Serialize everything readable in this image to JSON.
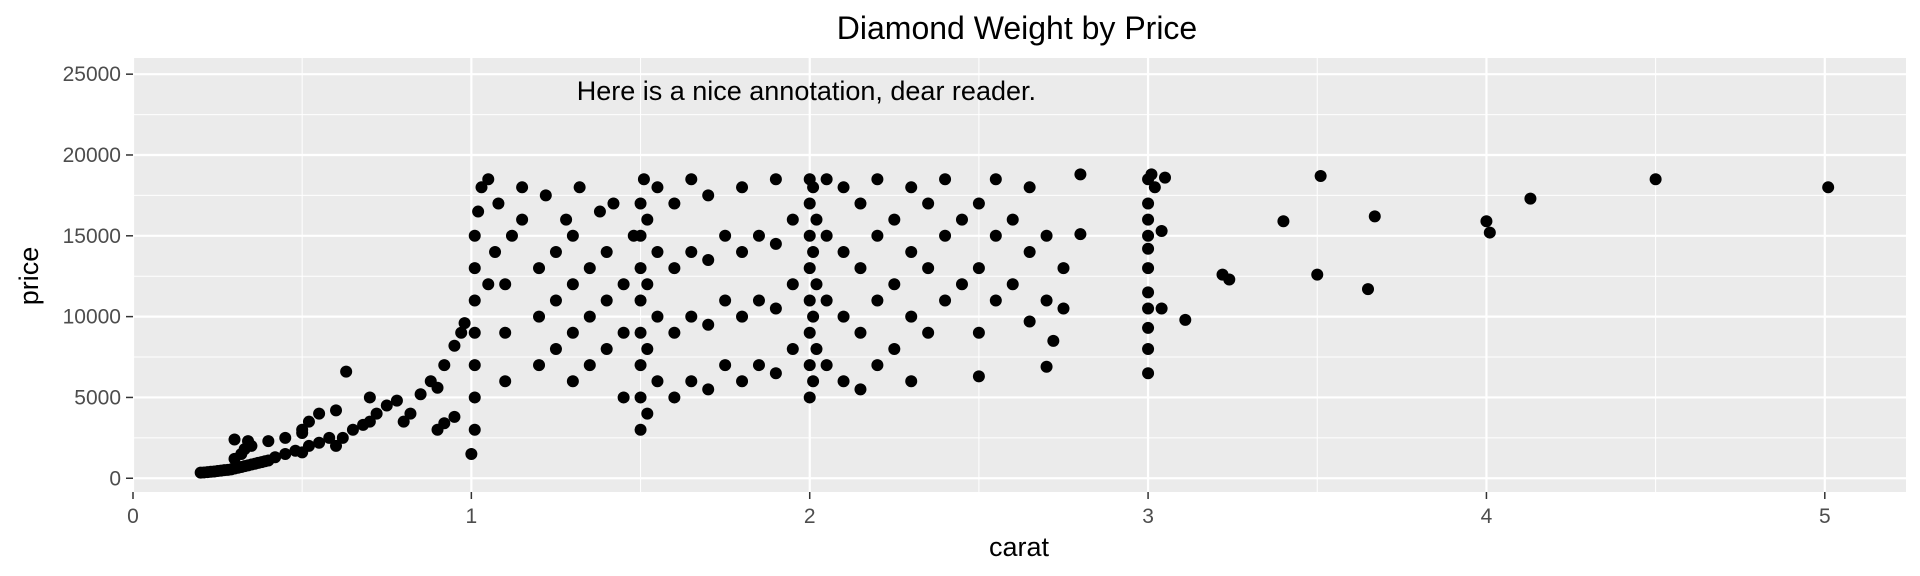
{
  "chart_data": {
    "type": "scatter",
    "title": "Diamond Weight by Price",
    "xlabel": "carat",
    "ylabel": "price",
    "xlim": [
      0,
      5.24
    ],
    "ylim": [
      0,
      25000
    ],
    "x_ticks": [
      0,
      1,
      2,
      3,
      4,
      5
    ],
    "y_ticks": [
      0,
      5000,
      10000,
      15000,
      20000,
      25000
    ],
    "grid": true,
    "annotation": {
      "text": "Here is a nice annotation, dear reader.",
      "x": 2,
      "y": 25000
    },
    "point_color": "#000000",
    "panel_color": "#ebebeb",
    "grid_color": "#ffffff",
    "points": [
      [
        0.2,
        350
      ],
      [
        0.21,
        360
      ],
      [
        0.22,
        380
      ],
      [
        0.23,
        400
      ],
      [
        0.24,
        420
      ],
      [
        0.25,
        450
      ],
      [
        0.26,
        470
      ],
      [
        0.27,
        500
      ],
      [
        0.28,
        520
      ],
      [
        0.29,
        550
      ],
      [
        0.3,
        600
      ],
      [
        0.31,
        650
      ],
      [
        0.32,
        700
      ],
      [
        0.33,
        750
      ],
      [
        0.34,
        800
      ],
      [
        0.35,
        850
      ],
      [
        0.36,
        900
      ],
      [
        0.37,
        950
      ],
      [
        0.38,
        1000
      ],
      [
        0.39,
        1050
      ],
      [
        0.3,
        1200
      ],
      [
        0.32,
        1500
      ],
      [
        0.33,
        1800
      ],
      [
        0.35,
        2000
      ],
      [
        0.3,
        2400
      ],
      [
        0.34,
        2300
      ],
      [
        0.4,
        2300
      ],
      [
        0.45,
        2500
      ],
      [
        0.5,
        2800
      ],
      [
        0.4,
        1100
      ],
      [
        0.42,
        1300
      ],
      [
        0.45,
        1500
      ],
      [
        0.48,
        1700
      ],
      [
        0.5,
        1600
      ],
      [
        0.52,
        2000
      ],
      [
        0.55,
        2200
      ],
      [
        0.58,
        2500
      ],
      [
        0.5,
        3000
      ],
      [
        0.52,
        3500
      ],
      [
        0.55,
        4000
      ],
      [
        0.6,
        2000
      ],
      [
        0.62,
        2500
      ],
      [
        0.65,
        3000
      ],
      [
        0.68,
        3300
      ],
      [
        0.7,
        3500
      ],
      [
        0.72,
        4000
      ],
      [
        0.75,
        4500
      ],
      [
        0.6,
        4200
      ],
      [
        0.63,
        6600
      ],
      [
        0.7,
        5000
      ],
      [
        0.78,
        4800
      ],
      [
        0.8,
        3500
      ],
      [
        0.82,
        4000
      ],
      [
        0.85,
        5200
      ],
      [
        0.88,
        6000
      ],
      [
        0.9,
        5600
      ],
      [
        0.92,
        7000
      ],
      [
        0.95,
        8200
      ],
      [
        0.97,
        9000
      ],
      [
        0.98,
        9600
      ],
      [
        0.9,
        3000
      ],
      [
        0.92,
        3400
      ],
      [
        0.95,
        3800
      ],
      [
        1.0,
        1500
      ],
      [
        1.01,
        3000
      ],
      [
        1.01,
        5000
      ],
      [
        1.01,
        7000
      ],
      [
        1.01,
        9000
      ],
      [
        1.01,
        11000
      ],
      [
        1.01,
        13000
      ],
      [
        1.01,
        15000
      ],
      [
        1.02,
        16500
      ],
      [
        1.03,
        18000
      ],
      [
        1.05,
        12000
      ],
      [
        1.05,
        18500
      ],
      [
        1.07,
        14000
      ],
      [
        1.08,
        17000
      ],
      [
        1.1,
        6000
      ],
      [
        1.1,
        9000
      ],
      [
        1.1,
        12000
      ],
      [
        1.12,
        15000
      ],
      [
        1.15,
        16000
      ],
      [
        1.15,
        18000
      ],
      [
        1.2,
        7000
      ],
      [
        1.2,
        10000
      ],
      [
        1.2,
        13000
      ],
      [
        1.22,
        17500
      ],
      [
        1.25,
        8000
      ],
      [
        1.25,
        11000
      ],
      [
        1.25,
        14000
      ],
      [
        1.28,
        16000
      ],
      [
        1.3,
        6000
      ],
      [
        1.3,
        9000
      ],
      [
        1.3,
        12000
      ],
      [
        1.3,
        15000
      ],
      [
        1.32,
        18000
      ],
      [
        1.35,
        7000
      ],
      [
        1.35,
        10000
      ],
      [
        1.35,
        13000
      ],
      [
        1.38,
        16500
      ],
      [
        1.4,
        8000
      ],
      [
        1.4,
        11000
      ],
      [
        1.4,
        14000
      ],
      [
        1.42,
        17000
      ],
      [
        1.45,
        5000
      ],
      [
        1.45,
        9000
      ],
      [
        1.45,
        12000
      ],
      [
        1.48,
        15000
      ],
      [
        1.5,
        3000
      ],
      [
        1.5,
        5000
      ],
      [
        1.5,
        7000
      ],
      [
        1.5,
        9000
      ],
      [
        1.5,
        11000
      ],
      [
        1.5,
        13000
      ],
      [
        1.5,
        15000
      ],
      [
        1.5,
        17000
      ],
      [
        1.51,
        18500
      ],
      [
        1.52,
        4000
      ],
      [
        1.52,
        8000
      ],
      [
        1.52,
        12000
      ],
      [
        1.52,
        16000
      ],
      [
        1.55,
        6000
      ],
      [
        1.55,
        10000
      ],
      [
        1.55,
        14000
      ],
      [
        1.55,
        18000
      ],
      [
        1.6,
        5000
      ],
      [
        1.6,
        9000
      ],
      [
        1.6,
        13000
      ],
      [
        1.6,
        17000
      ],
      [
        1.65,
        6000
      ],
      [
        1.65,
        10000
      ],
      [
        1.65,
        14000
      ],
      [
        1.65,
        18500
      ],
      [
        1.7,
        5500
      ],
      [
        1.7,
        9500
      ],
      [
        1.7,
        13500
      ],
      [
        1.7,
        17500
      ],
      [
        1.75,
        7000
      ],
      [
        1.75,
        11000
      ],
      [
        1.75,
        15000
      ],
      [
        1.8,
        6000
      ],
      [
        1.8,
        10000
      ],
      [
        1.8,
        14000
      ],
      [
        1.8,
        18000
      ],
      [
        1.85,
        7000
      ],
      [
        1.85,
        11000
      ],
      [
        1.85,
        15000
      ],
      [
        1.9,
        6500
      ],
      [
        1.9,
        10500
      ],
      [
        1.9,
        14500
      ],
      [
        1.95,
        8000
      ],
      [
        1.95,
        12000
      ],
      [
        1.95,
        16000
      ],
      [
        1.9,
        18500
      ],
      [
        2.0,
        5000
      ],
      [
        2.0,
        7000
      ],
      [
        2.0,
        9000
      ],
      [
        2.0,
        11000
      ],
      [
        2.0,
        13000
      ],
      [
        2.0,
        15000
      ],
      [
        2.0,
        17000
      ],
      [
        2.0,
        18500
      ],
      [
        2.01,
        6000
      ],
      [
        2.01,
        10000
      ],
      [
        2.01,
        14000
      ],
      [
        2.01,
        18000
      ],
      [
        2.02,
        8000
      ],
      [
        2.02,
        12000
      ],
      [
        2.02,
        16000
      ],
      [
        2.05,
        7000
      ],
      [
        2.05,
        11000
      ],
      [
        2.05,
        15000
      ],
      [
        2.05,
        18500
      ],
      [
        2.1,
        6000
      ],
      [
        2.1,
        10000
      ],
      [
        2.1,
        14000
      ],
      [
        2.1,
        18000
      ],
      [
        2.15,
        5500
      ],
      [
        2.15,
        9000
      ],
      [
        2.15,
        13000
      ],
      [
        2.15,
        17000
      ],
      [
        2.2,
        7000
      ],
      [
        2.2,
        11000
      ],
      [
        2.2,
        15000
      ],
      [
        2.2,
        18500
      ],
      [
        2.25,
        8000
      ],
      [
        2.25,
        12000
      ],
      [
        2.25,
        16000
      ],
      [
        2.3,
        6000
      ],
      [
        2.3,
        10000
      ],
      [
        2.3,
        14000
      ],
      [
        2.3,
        18000
      ],
      [
        2.35,
        9000
      ],
      [
        2.35,
        13000
      ],
      [
        2.35,
        17000
      ],
      [
        2.4,
        11000
      ],
      [
        2.4,
        15000
      ],
      [
        2.4,
        18500
      ],
      [
        2.45,
        12000
      ],
      [
        2.45,
        16000
      ],
      [
        2.5,
        6300
      ],
      [
        2.5,
        9000
      ],
      [
        2.5,
        13000
      ],
      [
        2.5,
        17000
      ],
      [
        2.55,
        11000
      ],
      [
        2.55,
        15000
      ],
      [
        2.55,
        18500
      ],
      [
        2.6,
        12000
      ],
      [
        2.6,
        16000
      ],
      [
        2.65,
        9700
      ],
      [
        2.65,
        14000
      ],
      [
        2.65,
        18000
      ],
      [
        2.7,
        6900
      ],
      [
        2.7,
        11000
      ],
      [
        2.7,
        15000
      ],
      [
        2.72,
        8500
      ],
      [
        2.75,
        13000
      ],
      [
        2.75,
        10500
      ],
      [
        2.8,
        15100
      ],
      [
        2.8,
        18800
      ],
      [
        3.0,
        6500
      ],
      [
        3.0,
        8000
      ],
      [
        3.0,
        9300
      ],
      [
        3.0,
        10500
      ],
      [
        3.0,
        11500
      ],
      [
        3.0,
        13000
      ],
      [
        3.0,
        14200
      ],
      [
        3.0,
        15000
      ],
      [
        3.0,
        16000
      ],
      [
        3.0,
        17000
      ],
      [
        3.0,
        18500
      ],
      [
        3.01,
        18800
      ],
      [
        3.02,
        18000
      ],
      [
        3.04,
        10500
      ],
      [
        3.04,
        15300
      ],
      [
        3.05,
        18600
      ],
      [
        3.11,
        9800
      ],
      [
        3.22,
        12600
      ],
      [
        3.24,
        12300
      ],
      [
        3.4,
        15900
      ],
      [
        3.5,
        12600
      ],
      [
        3.51,
        18700
      ],
      [
        3.65,
        11700
      ],
      [
        3.67,
        16200
      ],
      [
        4.0,
        15900
      ],
      [
        4.01,
        15200
      ],
      [
        4.13,
        17300
      ],
      [
        4.5,
        18500
      ],
      [
        5.01,
        18000
      ]
    ]
  }
}
